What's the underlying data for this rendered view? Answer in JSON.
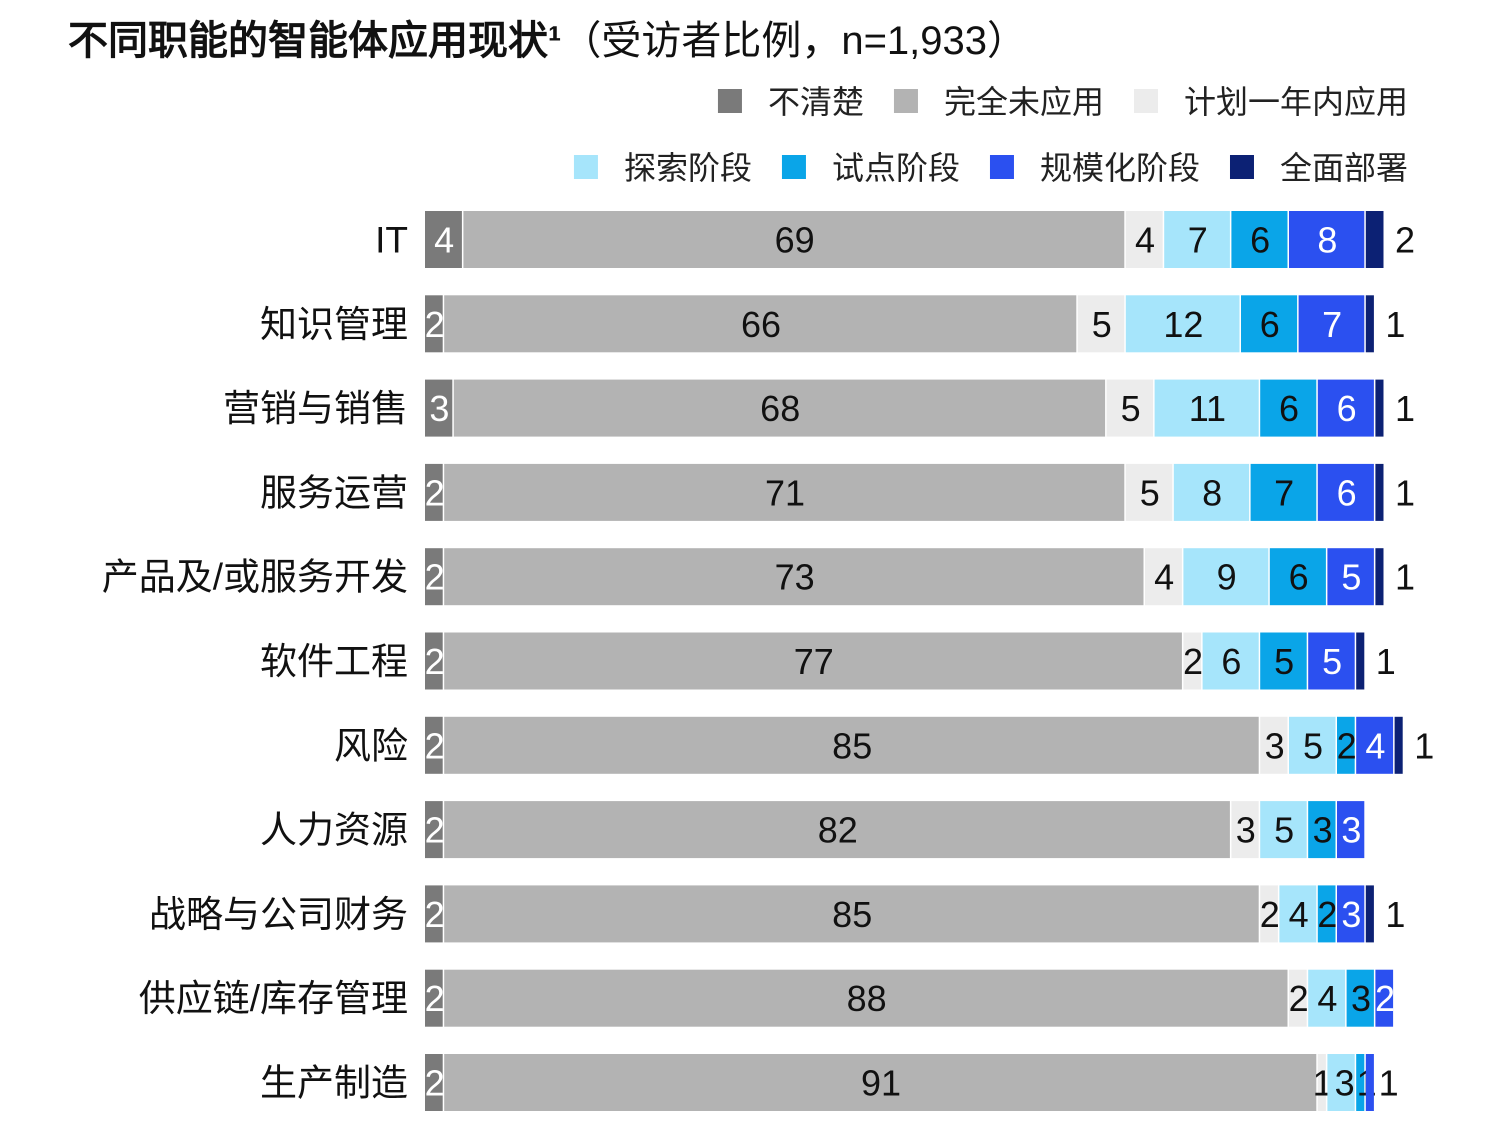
{
  "chart_data": {
    "type": "bar",
    "orientation": "horizontal",
    "stacked": true,
    "title": "不同职能的智能体应用现状¹",
    "subtitle": "（受访者比例，n=1,933）",
    "legend_placement": "top-right",
    "categories": [
      "IT",
      "知识管理",
      "营销与销售",
      "服务运营",
      "产品及/或服务开发",
      "软件工程",
      "风险",
      "人力资源",
      "战略与公司财务",
      "供应链/库存管理",
      "生产制造"
    ],
    "series": [
      {
        "name": "不清楚",
        "color": "#7a7a7a",
        "label_color": "#ffffff",
        "values": [
          4,
          2,
          3,
          2,
          2,
          2,
          2,
          2,
          2,
          2,
          2
        ]
      },
      {
        "name": "完全未应用",
        "color": "#b3b3b3",
        "label_color": "#111111",
        "values": [
          69,
          66,
          68,
          71,
          73,
          77,
          85,
          82,
          85,
          88,
          91
        ]
      },
      {
        "name": "计划一年内应用",
        "color": "#ececec",
        "label_color": "#111111",
        "values": [
          4,
          5,
          5,
          5,
          4,
          2,
          3,
          3,
          2,
          2,
          1
        ]
      },
      {
        "name": "探索阶段",
        "color": "#a6e5fb",
        "label_color": "#111111",
        "values": [
          7,
          12,
          11,
          8,
          9,
          6,
          5,
          5,
          4,
          4,
          3
        ]
      },
      {
        "name": "试点阶段",
        "color": "#0aa5e8",
        "label_color": "#111111",
        "values": [
          6,
          6,
          6,
          7,
          6,
          5,
          2,
          3,
          2,
          3,
          1
        ]
      },
      {
        "name": "规模化阶段",
        "color": "#2b50f0",
        "label_color": "#ffffff",
        "values": [
          8,
          7,
          6,
          6,
          5,
          5,
          4,
          3,
          3,
          2,
          1
        ]
      },
      {
        "name": "全面部署",
        "color": "#0c2174",
        "label_color": "#111111",
        "values": [
          2,
          1,
          1,
          1,
          1,
          1,
          1,
          null,
          1,
          null,
          null
        ]
      }
    ],
    "xlim": [
      0,
      100
    ],
    "grid": false
  }
}
